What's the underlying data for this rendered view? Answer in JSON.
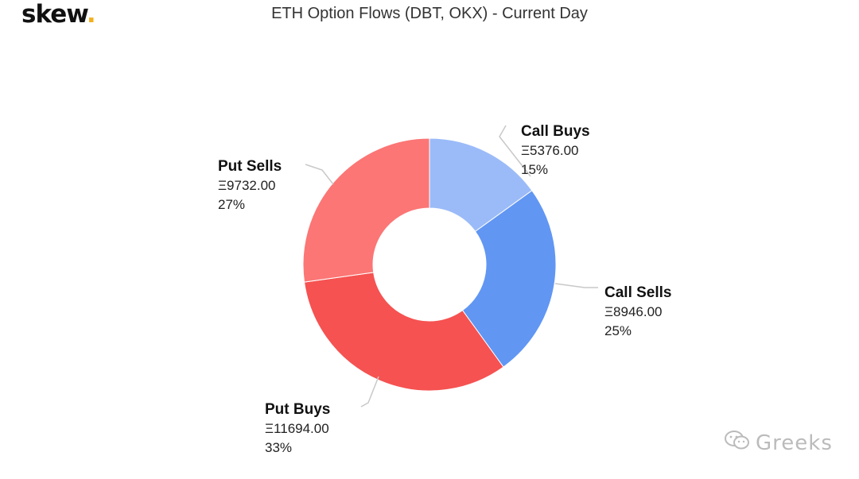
{
  "brand": {
    "logo_text": "skew",
    "logo_dot": ".",
    "accent_color": "#f2b01e"
  },
  "watermark": {
    "icon": "wechat-icon",
    "text": "Greeks"
  },
  "chart_data": {
    "type": "pie",
    "donut": true,
    "title": "ETH Option Flows (DBT, OKX) - Current Day",
    "slices": [
      {
        "name": "Call Buys",
        "value": 5376.0,
        "value_label": "Ξ5376.00",
        "percent_label": "15%",
        "color": "#9bbbf8"
      },
      {
        "name": "Call Sells",
        "value": 8946.0,
        "value_label": "Ξ8946.00",
        "percent_label": "25%",
        "color": "#6196f3"
      },
      {
        "name": "Put Buys",
        "value": 11694.0,
        "value_label": "Ξ11694.00",
        "percent_label": "33%",
        "color": "#f55251"
      },
      {
        "name": "Put Sells",
        "value": 9732.0,
        "value_label": "Ξ9732.00",
        "percent_label": "27%",
        "color": "#fb7675"
      }
    ]
  }
}
